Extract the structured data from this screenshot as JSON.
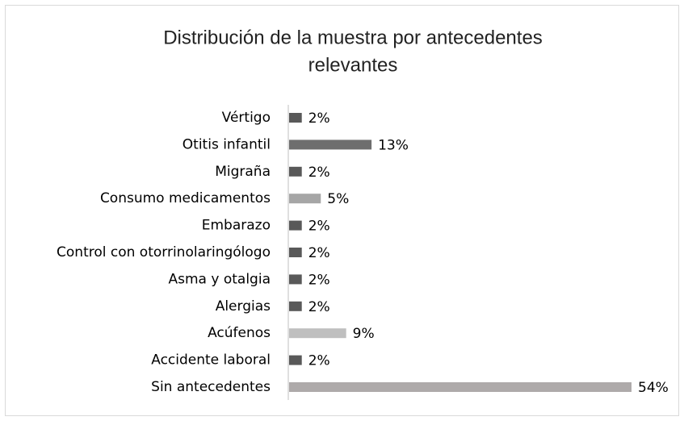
{
  "chart_data": {
    "type": "bar",
    "orientation": "horizontal",
    "title": [
      "Distribución de la muestra por antecedentes",
      "relevantes"
    ],
    "categories": [
      "Vértigo",
      "Otitis infantil",
      "Migraña",
      "Consumo medicamentos",
      "Embarazo",
      "Control con otorrinolaringólogo",
      "Asma y otalgia",
      "Alergias",
      "Acúfenos",
      "Accidente laboral",
      "Sin antecedentes"
    ],
    "values": [
      2,
      13,
      2,
      5,
      2,
      2,
      2,
      2,
      9,
      2,
      54
    ],
    "value_labels": [
      "2%",
      "13%",
      "2%",
      "5%",
      "2%",
      "2%",
      "2%",
      "2%",
      "9%",
      "2%",
      "54%"
    ],
    "colors": [
      "#595959",
      "#6e6e6e",
      "#595959",
      "#a6a6a6",
      "#595959",
      "#595959",
      "#595959",
      "#595959",
      "#bfbfbf",
      "#595959",
      "#aeaaaa"
    ]
  }
}
